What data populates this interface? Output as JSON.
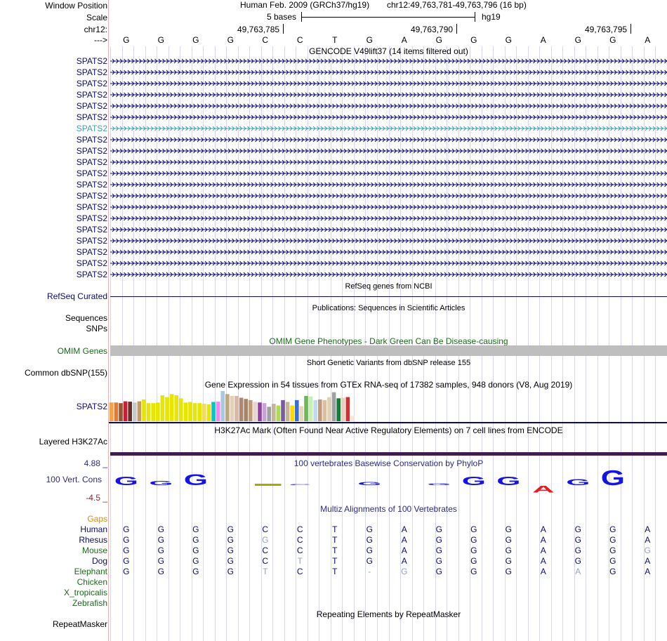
{
  "header": {
    "window_position_label": "Window Position",
    "scale_label": "Scale",
    "chr_label": "chr12:",
    "strand_label": "--->",
    "assembly": "Human Feb. 2009 (GRCh37/hg19)",
    "position": "chr12:49,763,781-49,763,796 (16 bp)",
    "scale_text": "5 bases",
    "scale_db": "hg19",
    "ticks": [
      "49,763,785",
      "49,763,790",
      "49,763,795"
    ]
  },
  "bases": [
    "G",
    "G",
    "G",
    "G",
    "C",
    "C",
    "T",
    "G",
    "A",
    "G",
    "G",
    "G",
    "A",
    "G",
    "G",
    "A"
  ],
  "gencode": {
    "title": "GENCODE V49lift37 (14 items filtered out)",
    "items": [
      "SPATS2",
      "SPATS2",
      "SPATS2",
      "SPATS2",
      "SPATS2",
      "SPATS2",
      "SPATS2",
      "SPATS2",
      "SPATS2",
      "SPATS2",
      "SPATS2",
      "SPATS2",
      "SPATS2",
      "SPATS2",
      "SPATS2",
      "SPATS2",
      "SPATS2",
      "SPATS2",
      "SPATS2",
      "SPATS2"
    ],
    "highlight_index": 6,
    "colors": {
      "normal": "#0b0b6e",
      "highlight": "#3b9fb3"
    }
  },
  "refseq": {
    "title": "RefSeq genes from NCBI",
    "label": "RefSeq Curated"
  },
  "publications": {
    "title": "Publications: Sequences in Scientific Articles",
    "label1": "Sequences",
    "label2": "SNPs"
  },
  "omim": {
    "title": "OMIM Gene Phenotypes - Dark Green Can Be Disease-causing",
    "label": "OMIM Genes",
    "color": "#1a6b1a"
  },
  "dbsnp": {
    "title": "Short Genetic Variants from dbSNP release 155",
    "label": "Common dbSNP(155)"
  },
  "gtex": {
    "title": "Gene Expression in 54 tissues from GTEx RNA-seq of 17382 samples, 948 donors (V8, Aug 2019)",
    "label": "SPATS2",
    "values": [
      0.62,
      0.62,
      0.6,
      0.66,
      0.65,
      0.62,
      0.66,
      0.72,
      0.6,
      0.6,
      0.62,
      0.86,
      0.8,
      0.9,
      0.86,
      0.76,
      0.62,
      0.64,
      0.6,
      0.6,
      0.58,
      0.56,
      0.64,
      0.65,
      1.0,
      0.9,
      0.84,
      0.84,
      0.78,
      0.74,
      0.7,
      0.64,
      0.62,
      0.6,
      0.48,
      0.58,
      0.52,
      0.7,
      0.64,
      0.52,
      0.7,
      0.5,
      0.84,
      0.82,
      0.7,
      0.72,
      0.7,
      0.8,
      0.96,
      0.76,
      0.78,
      0.8,
      0.18,
      0.0
    ],
    "colors": [
      "#f5a349",
      "#e47a2b",
      "#9a5434",
      "#c2213a",
      "#6c2d2a",
      "#c8c8c8",
      "#c49a6c",
      "#e6e600",
      "#e6e600",
      "#e6e600",
      "#e6e600",
      "#e6e600",
      "#e6e600",
      "#e6e600",
      "#e6e600",
      "#e6e600",
      "#e6e600",
      "#e6e600",
      "#e6e600",
      "#e6e600",
      "#f0d76e",
      "#e6e600",
      "#00c8c8",
      "#f288f0",
      "#a5c8e6",
      "#bfa77d",
      "#e6cfb8",
      "#d9b8a8",
      "#b08670",
      "#a7856a",
      "#c09a7a",
      "#e8d4c8",
      "#9340a6",
      "#c6a3d2",
      "#a0a0a0",
      "#c9b596",
      "#aadd55",
      "#7a5ba0",
      "#c4b598",
      "#ffd800",
      "#3c6ed2",
      "#e6d8b0",
      "#6fb65a",
      "#c8f0b4",
      "#c0d8f0",
      "#c09a7a",
      "#d8c0a0",
      "#e0d0b8",
      "#a0a0a0",
      "#137a3a",
      "#e8d0c0",
      "#d03030",
      "#f0e8d8",
      "#ff00ff"
    ]
  },
  "h3k27ac": {
    "title": "H3K27Ac Mark (Often Found Near Active Regulatory Elements) on 7 cell lines from ENCODE",
    "label": "Layered H3K27Ac"
  },
  "cons": {
    "title": "100 vertebrates Basewise Conservation by PhyloP",
    "label": "100 Vert. Cons",
    "max_label": "4.88 _",
    "min_label": "-4.5 _",
    "scores": [
      3.1,
      1.5,
      4.0,
      0,
      0,
      0.3,
      0,
      1.1,
      0,
      0.6,
      3.2,
      3.2,
      -2.5,
      2.2,
      5.5,
      0
    ],
    "bars": [
      0,
      0,
      0,
      0,
      0.5,
      0,
      0,
      0,
      0,
      0,
      0,
      0,
      0,
      0,
      0,
      0
    ]
  },
  "multiz": {
    "title": "Multiz Alignments of 100 Vertebrates",
    "gaps_label": "Gaps",
    "rows": [
      {
        "species": "Human",
        "bases": [
          "G",
          "G",
          "G",
          "G",
          "C",
          "C",
          "T",
          "G",
          "A",
          "G",
          "G",
          "G",
          "A",
          "G",
          "G",
          "A"
        ]
      },
      {
        "species": "Rhesus",
        "bases": [
          "G",
          "G",
          "G",
          "G",
          "G",
          "C",
          "T",
          "G",
          "A",
          "G",
          "G",
          "G",
          "A",
          "G",
          "G",
          "A"
        ]
      },
      {
        "species": "Mouse",
        "bases": [
          "G",
          "G",
          "G",
          "G",
          "C",
          "C",
          "T",
          "G",
          "A",
          "G",
          "G",
          "G",
          "A",
          "G",
          "G",
          "G"
        ]
      },
      {
        "species": "Dog",
        "bases": [
          "G",
          "G",
          "G",
          "G",
          "C",
          "T",
          "T",
          "G",
          "A",
          "G",
          "G",
          "G",
          "A",
          "G",
          "G",
          "A"
        ]
      },
      {
        "species": "Elephant",
        "bases": [
          "G",
          "G",
          "G",
          "G",
          "T",
          "C",
          "T",
          "-",
          "G",
          "G",
          "G",
          "G",
          "A",
          "A",
          "G",
          "A"
        ]
      },
      {
        "species": "Chicken",
        "bases": []
      },
      {
        "species": "X_tropicalis",
        "bases": []
      },
      {
        "species": "Zebrafish",
        "bases": []
      }
    ]
  },
  "repeatmasker": {
    "title": "Repeating Elements by RepeatMasker",
    "label": "RepeatMasker"
  }
}
